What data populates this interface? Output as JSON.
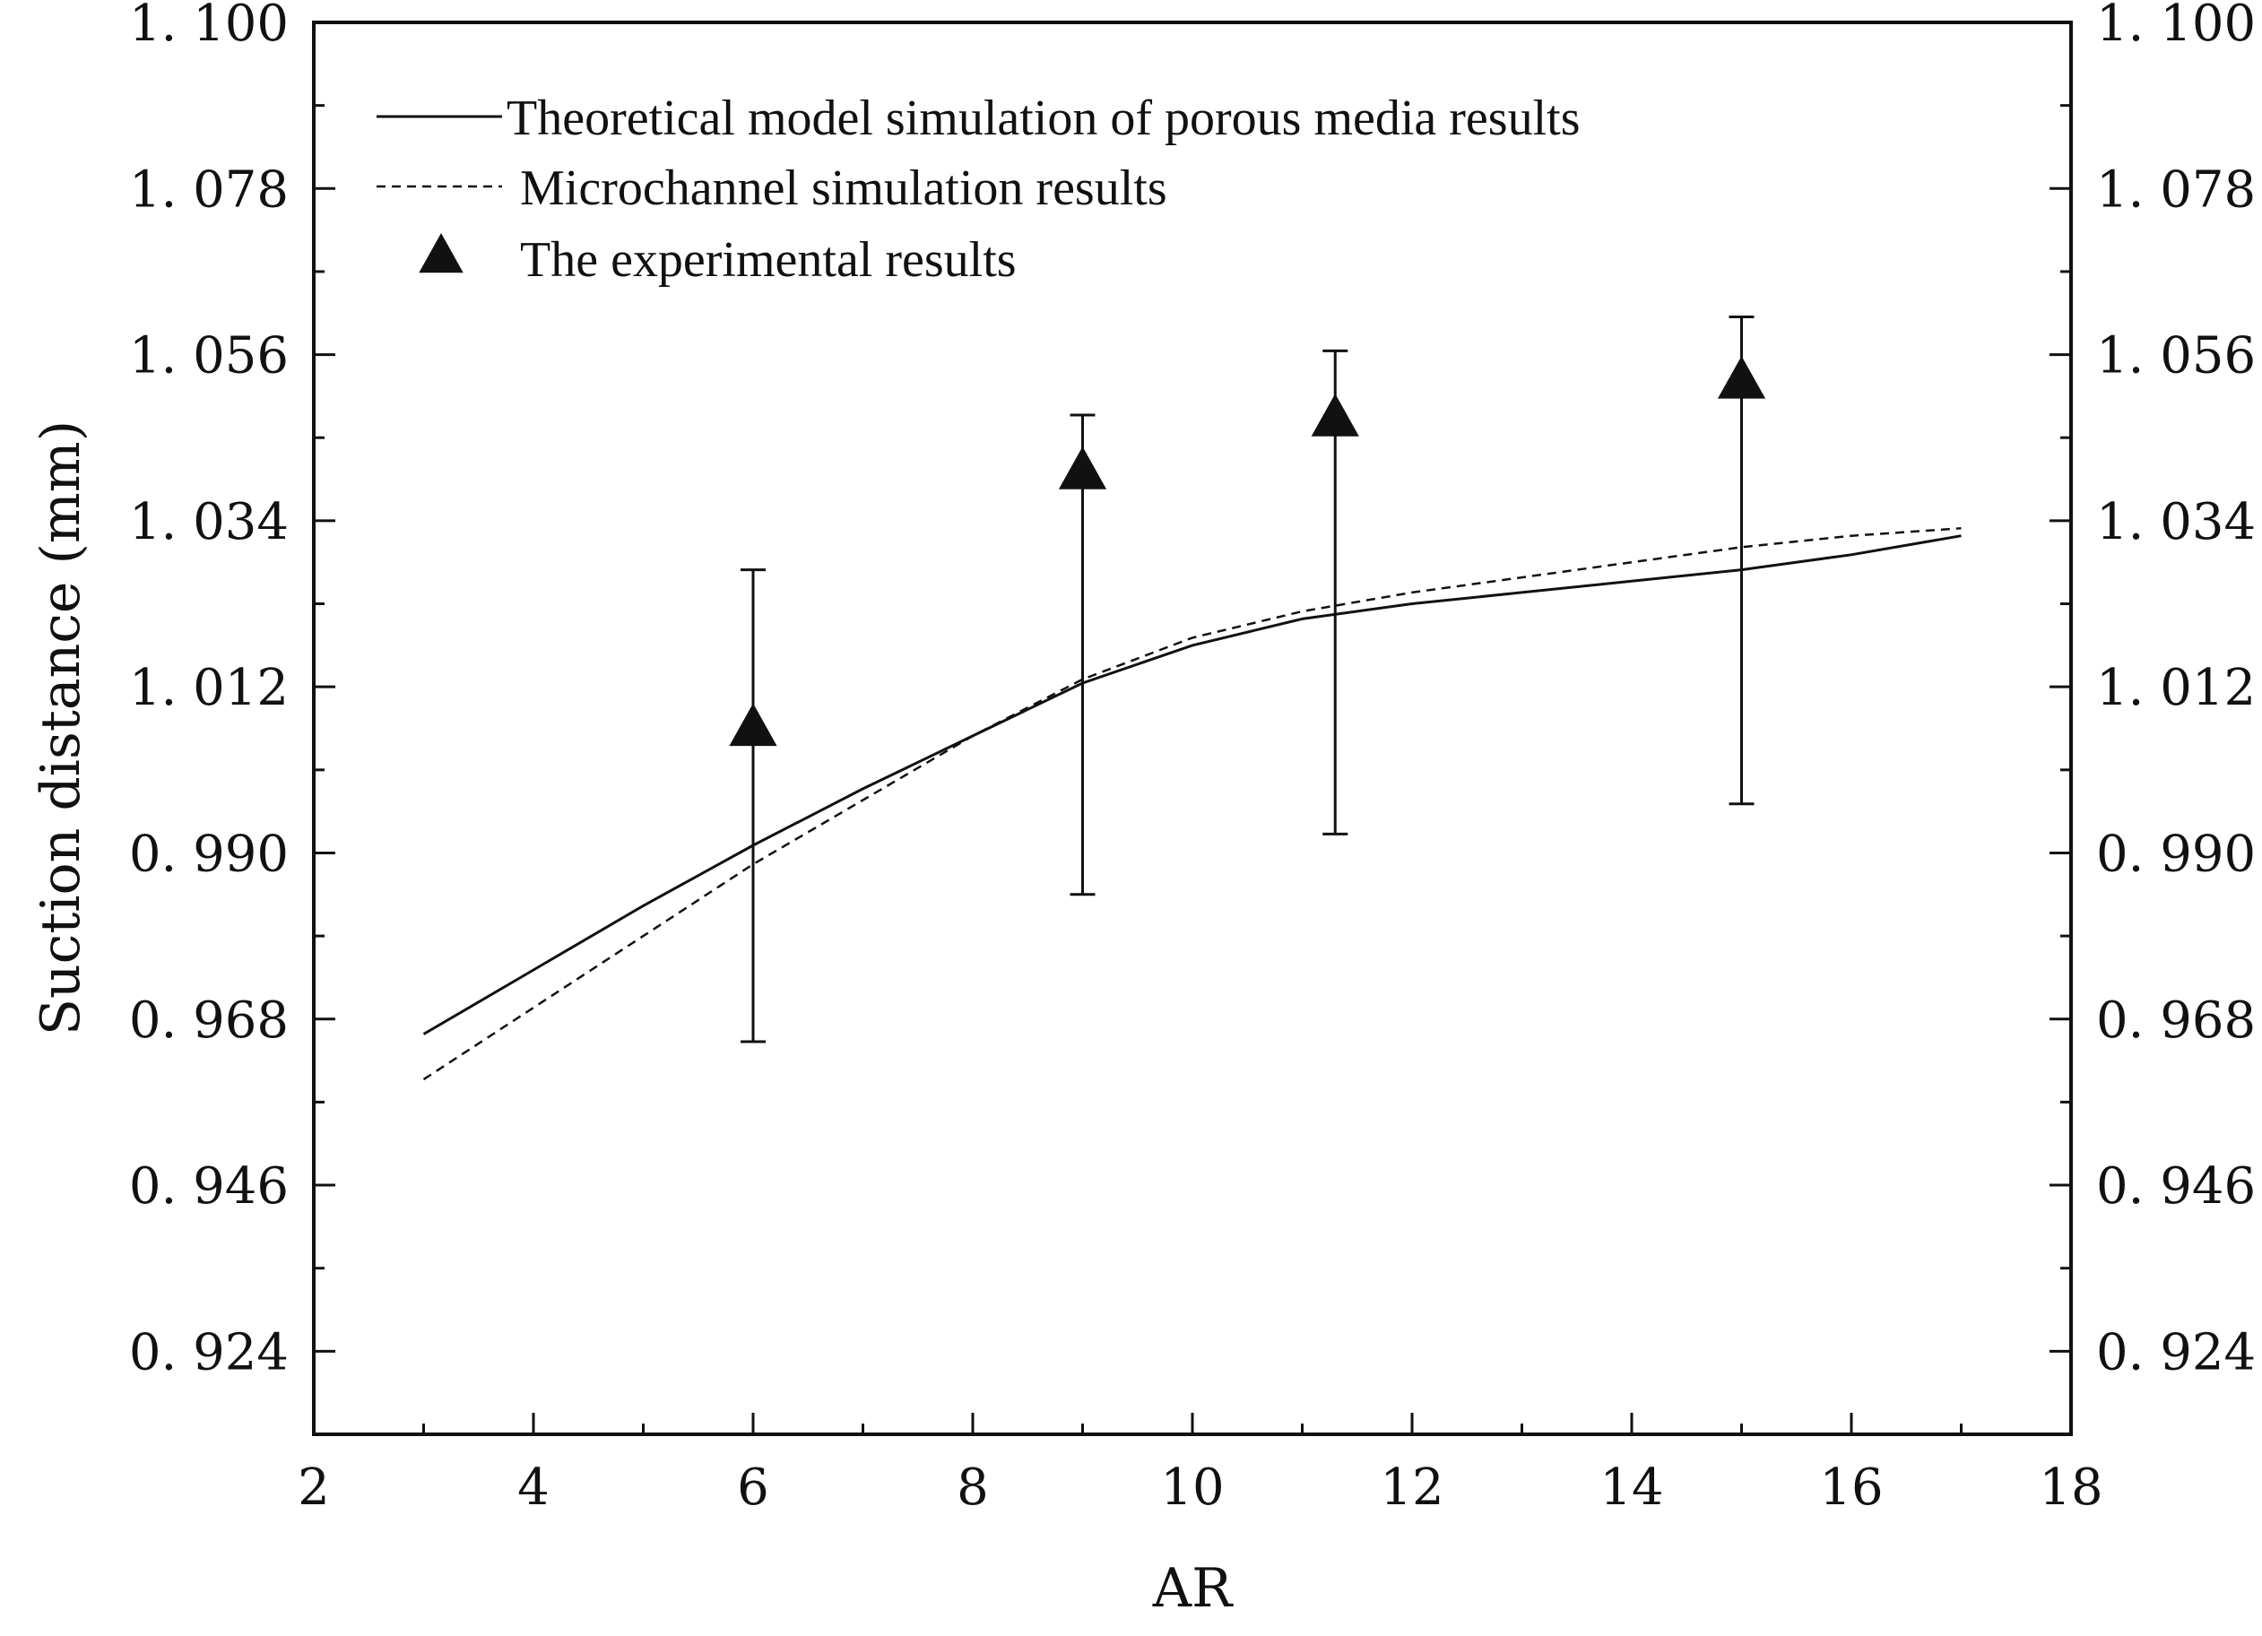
{
  "chart_data": {
    "type": "line",
    "title": "",
    "xlabel": "AR",
    "ylabel": "Suction distance (mm)",
    "xlim": [
      2,
      18
    ],
    "ylim": [
      0.913,
      1.1
    ],
    "x_ticks": [
      2,
      4,
      6,
      8,
      10,
      12,
      14,
      16,
      18
    ],
    "x_tick_labels": [
      "2",
      "4",
      "6",
      "8",
      "10",
      "12",
      "14",
      "16",
      "18"
    ],
    "y_ticks": [
      0.924,
      0.946,
      0.968,
      0.99,
      1.012,
      1.034,
      1.056,
      1.078,
      1.1
    ],
    "y_tick_labels": [
      "0. 924",
      "0. 946",
      "0. 968",
      "0. 990",
      "1. 012",
      "1. 034",
      "1. 056",
      "1. 078",
      "1. 100"
    ],
    "grid": false,
    "legend_position": "top-left",
    "series": [
      {
        "name": "Theoretical model simulation of porous media results",
        "style": "solid",
        "x": [
          3,
          4,
          5,
          6,
          7,
          8,
          9,
          10,
          11,
          12,
          13,
          14,
          15,
          16,
          17
        ],
        "y": [
          0.966,
          0.9745,
          0.983,
          0.991,
          0.9985,
          1.0055,
          1.0125,
          1.0175,
          1.021,
          1.023,
          1.0245,
          1.026,
          1.0275,
          1.0295,
          1.032
        ]
      },
      {
        "name": "Microchannel simulation results",
        "style": "dashed",
        "x": [
          3,
          4,
          5,
          6,
          7,
          8,
          9,
          10,
          11,
          12,
          13,
          14,
          15,
          16,
          17
        ],
        "y": [
          0.96,
          0.9695,
          0.979,
          0.9885,
          0.997,
          1.0055,
          1.013,
          1.0185,
          1.022,
          1.0245,
          1.0265,
          1.0285,
          1.0305,
          1.032,
          1.033
        ]
      },
      {
        "name": "The experimental results",
        "style": "triangle-markers",
        "x": [
          6,
          9,
          11.3,
          15
        ],
        "y": [
          1.0065,
          1.0405,
          1.0475,
          1.0525
        ],
        "err_upper": [
          1.0275,
          1.048,
          1.0565,
          1.061
        ],
        "err_lower": [
          0.965,
          0.9845,
          0.9925,
          0.9965
        ]
      }
    ]
  }
}
